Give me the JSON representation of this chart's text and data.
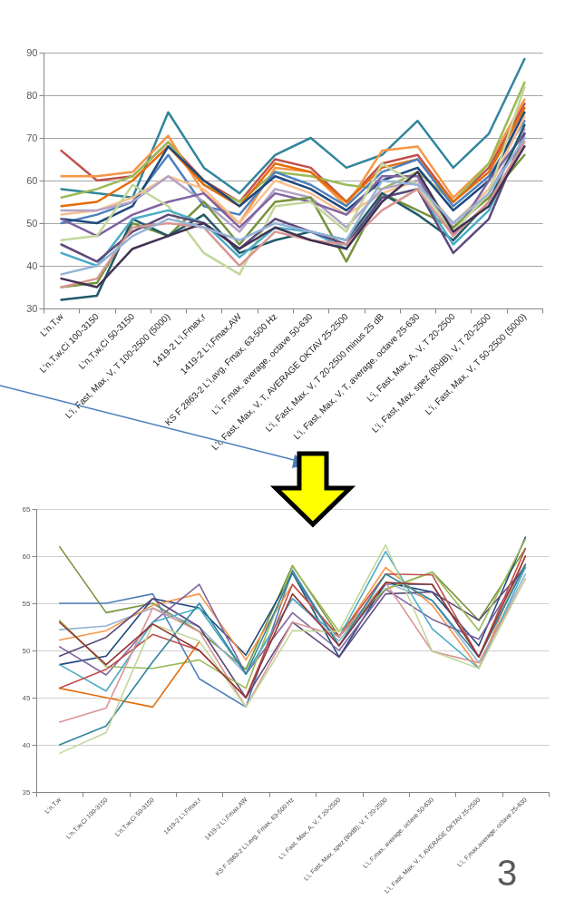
{
  "chart_data": [
    {
      "type": "line",
      "categories": [
        "L'n,T,w",
        "L'n,T,w,Ci 100-3150",
        "L'n,T,w,Ci 50-3150",
        "L'i, Fast, Max, V, T 100-2500 (5000)",
        "1419-2 L'i,Fmax,r",
        "1419-2 L'i,Fmax,AW",
        "KS F 2863-2 L'i,avg, Fmax, 63-500 Hz",
        "L'i, F,max, average, octave 50-630",
        "L'i, Fast, Max, V, T, AVERAGE OKTAV 25-2500",
        "L'i, Fast, Max, V, T 20-2500 minus 25 dB",
        "L'i, Fast, Max, V, T, average, octave 25-630",
        "L'i, Fast, Max, A, V, T 20-2500",
        "L'i, Fast, Max, spez (80dB), V, T 20-2500",
        "L'i, Fast, Max, V, T 50-2500 (5000)"
      ],
      "series": [
        {
          "color": "#31859c",
          "values": [
            58,
            57,
            56,
            76,
            63,
            57,
            66,
            70,
            63,
            66,
            74,
            63,
            71,
            88.5
          ]
        },
        {
          "color": "#c0504d",
          "values": [
            67,
            60,
            61,
            69,
            60,
            55,
            65,
            63,
            55,
            64,
            66,
            55,
            63,
            78
          ]
        },
        {
          "color": "#f79646",
          "values": [
            61,
            61,
            62,
            70.5,
            57,
            50,
            63,
            62,
            54,
            67,
            68,
            56,
            64,
            79
          ]
        },
        {
          "color": "#9bbb59",
          "values": [
            56,
            58,
            61,
            69,
            59,
            55,
            62,
            61,
            59,
            58,
            62,
            55,
            64,
            83
          ]
        },
        {
          "color": "#e46c0a",
          "values": [
            54,
            55,
            60,
            68,
            59,
            54,
            64,
            62,
            55,
            63,
            65,
            55,
            62,
            77
          ]
        },
        {
          "color": "#4f81bd",
          "values": [
            50,
            52,
            55,
            66,
            54,
            52,
            62,
            59,
            54,
            62,
            65,
            54,
            61,
            74
          ]
        },
        {
          "color": "#1f497d",
          "values": [
            51,
            50,
            54,
            68,
            60,
            54,
            61,
            58,
            53,
            60,
            63,
            53,
            60,
            76
          ]
        },
        {
          "color": "#fac090",
          "values": [
            52,
            53,
            56,
            61,
            58,
            50,
            60,
            57,
            52,
            57,
            60,
            50,
            58,
            75
          ]
        },
        {
          "color": "#b3a2c7",
          "values": [
            53,
            53,
            55,
            61,
            55,
            48,
            58,
            56,
            49,
            58,
            60,
            49,
            57,
            72
          ]
        },
        {
          "color": "#8064a2",
          "values": [
            51,
            47,
            52,
            55,
            57,
            49,
            57,
            55,
            52,
            61,
            61,
            47,
            60,
            71
          ]
        },
        {
          "color": "#77933c",
          "values": [
            35,
            36,
            50,
            47,
            55,
            45,
            55,
            56,
            41,
            57,
            53,
            49,
            56,
            66
          ]
        },
        {
          "color": "#c3d69b",
          "values": [
            46,
            47,
            59,
            54,
            43,
            38,
            54,
            55,
            48,
            64,
            59,
            48,
            57,
            82
          ]
        },
        {
          "color": "#215968",
          "values": [
            32,
            33,
            51,
            47,
            52,
            43,
            46,
            48,
            46,
            57,
            52,
            46,
            55,
            73
          ]
        },
        {
          "color": "#4bacc6",
          "values": [
            43,
            40,
            51,
            53,
            50,
            42,
            49,
            48,
            44,
            56,
            58,
            45,
            53,
            70
          ]
        },
        {
          "color": "#5f497a",
          "values": [
            45,
            41,
            48,
            52,
            50,
            44,
            51,
            48,
            45,
            56,
            58,
            43,
            51,
            71
          ]
        },
        {
          "color": "#d99694",
          "values": [
            35,
            37,
            49,
            50,
            49,
            40,
            48,
            46,
            45,
            53,
            58,
            47,
            55,
            69
          ]
        },
        {
          "color": "#403152",
          "values": [
            37,
            35,
            44,
            47,
            50,
            44,
            49,
            46,
            44,
            55,
            62,
            48,
            54,
            68
          ]
        },
        {
          "color": "#95b3d7",
          "values": [
            38,
            40,
            47,
            51,
            49,
            46,
            50,
            48,
            46,
            60,
            59,
            50,
            57,
            70
          ]
        }
      ],
      "ylim": [
        30,
        90
      ],
      "yticks": [
        30,
        40,
        50,
        60,
        70,
        80,
        90
      ],
      "grid": "y"
    },
    {
      "type": "line",
      "categories": [
        "L'n,T,w",
        "L'n,T,w,Ci 100-3150",
        "L'n,T,w,Ci 50-3150",
        "1419-2 L'i,Fmax,r",
        "1419-2 L'i,Fmax,AW",
        "KS F 2863-2 L'i,avg, Fmax, 63-500 Hz",
        "L'i, Fast, Max, A, V, T 20-2500",
        "L'i, Fast, Max, spez (80dB), V, T 20-2500",
        "L'i, F,max, average, octave 50-630",
        "L'i, Fast, Max, V, T, AVERAGE OKTAV 25-2500",
        "L'i, F,max,average, octave 25-630"
      ],
      "series": [
        {
          "color": "#77933c",
          "values": [
            61,
            54,
            55,
            52,
            48,
            59,
            51.5,
            56.5,
            58.3,
            53.2,
            60.8
          ]
        },
        {
          "color": "#4f81bd",
          "values": [
            55,
            55,
            56,
            47,
            44,
            58.5,
            50.5,
            57,
            57,
            49.3,
            59.1
          ]
        },
        {
          "color": "#1f497d",
          "values": [
            48.5,
            49.4,
            55.5,
            54.5,
            49.5,
            58.2,
            49.3,
            57.2,
            56.2,
            50.5,
            62
          ]
        },
        {
          "color": "#95b3d7",
          "values": [
            52.2,
            52.6,
            54.5,
            52.5,
            47.5,
            55.5,
            51,
            57.2,
            55.3,
            48.7,
            58.1
          ]
        },
        {
          "color": "#f79646",
          "values": [
            51.1,
            52.1,
            54.8,
            56,
            49,
            57,
            51.4,
            58.8,
            54.8,
            48.1,
            60
          ]
        },
        {
          "color": "#8064a2",
          "values": [
            50.4,
            47.4,
            53,
            57,
            47.5,
            54,
            50,
            56.5,
            53.3,
            51.2,
            59.1
          ]
        },
        {
          "color": "#5f497a",
          "values": [
            49.4,
            51.4,
            55.5,
            52.5,
            45,
            53,
            49.3,
            56,
            56.2,
            53.2,
            58.8
          ]
        },
        {
          "color": "#9bbb59",
          "values": [
            53.2,
            48.3,
            48.1,
            49,
            46,
            58.9,
            52,
            56.5,
            58.3,
            52.1,
            61.8
          ]
        },
        {
          "color": "#4bacc6",
          "values": [
            48.5,
            45.7,
            53,
            54.5,
            47.5,
            55.5,
            51.4,
            60.5,
            52.3,
            48.1,
            58.8
          ]
        },
        {
          "color": "#c0504d",
          "values": [
            46,
            48,
            51.7,
            50,
            45,
            57,
            51.5,
            58.1,
            58,
            49.3,
            60.8
          ]
        },
        {
          "color": "#e46c0a",
          "values": [
            46,
            45,
            44,
            50.9,
            null,
            null,
            null,
            null,
            null,
            null,
            null
          ]
        },
        {
          "color": "#d99694",
          "values": [
            42.4,
            43.9,
            54.5,
            52,
            44,
            53,
            51.5,
            57.2,
            49.9,
            48.7,
            57.6
          ]
        },
        {
          "color": "#31859c",
          "values": [
            40,
            42,
            48.8,
            55,
            47.5,
            58.2,
            50.5,
            58.1,
            55.3,
            49.3,
            59.1
          ]
        },
        {
          "color": "#c3d69b",
          "values": [
            39.1,
            41.3,
            52.8,
            51,
            44,
            52.1,
            52,
            61.2,
            49.9,
            48.1,
            57.6
          ]
        },
        {
          "color": "#953735",
          "values": [
            53,
            48.5,
            52.8,
            50,
            45,
            56,
            50.5,
            57.2,
            57,
            49.3,
            60
          ]
        }
      ],
      "ylim": [
        35,
        65
      ],
      "yticks": [
        35,
        40,
        45,
        50,
        55,
        60,
        65
      ],
      "grid": "y",
      "annotations": [
        "3"
      ]
    }
  ]
}
